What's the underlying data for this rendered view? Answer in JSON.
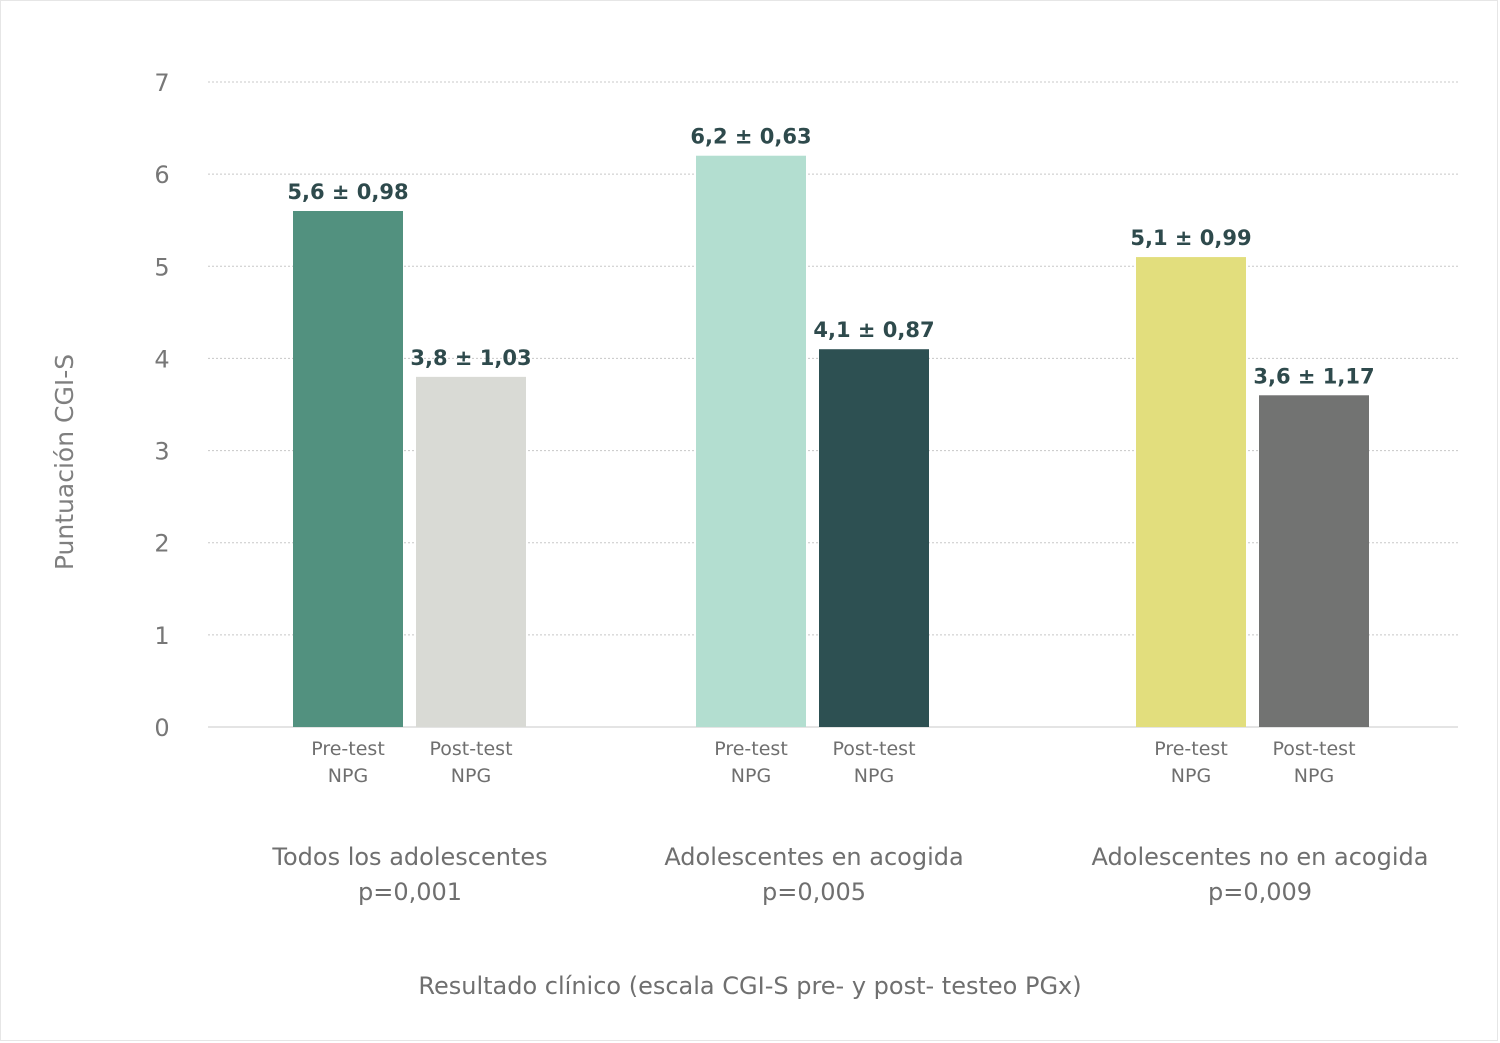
{
  "chart_data": {
    "type": "bar",
    "title": "",
    "ylabel": "Puntuación CGI-S",
    "xlabel": "Resultado clínico (escala CGI-S pre- y post- testeo PGx)",
    "ylim": [
      0,
      7
    ],
    "yticks": [
      "0",
      "1",
      "2",
      "3",
      "4",
      "5",
      "6",
      "7"
    ],
    "grid": true,
    "groups": [
      {
        "name": "Todos los adolescentes",
        "p_value": "p=0,001",
        "bars": [
          {
            "label_line1": "Pre-test",
            "label_line2": "NPG",
            "value": 5.6,
            "value_label": "5,6 ± 0,98",
            "color": "#52917f"
          },
          {
            "label_line1": "Post-test",
            "label_line2": "NPG",
            "value": 3.8,
            "value_label": "3,8 ± 1,03",
            "color": "#d9dad5"
          }
        ]
      },
      {
        "name": "Adolescentes en acogida",
        "p_value": "p=0,005",
        "bars": [
          {
            "label_line1": "Pre-test",
            "label_line2": "NPG",
            "value": 6.2,
            "value_label": "6,2 ± 0,63",
            "color": "#b3ded0"
          },
          {
            "label_line1": "Post-test",
            "label_line2": "NPG",
            "value": 4.1,
            "value_label": "4,1 ± 0,87",
            "color": "#2d5052"
          }
        ]
      },
      {
        "name": "Adolescentes no en acogida",
        "p_value": "p=0,009",
        "bars": [
          {
            "label_line1": "Pre-test",
            "label_line2": "NPG",
            "value": 5.1,
            "value_label": "5,1 ± 0,99",
            "color": "#e2de7d"
          },
          {
            "label_line1": "Post-test",
            "label_line2": "NPG",
            "value": 3.6,
            "value_label": "3,6 ± 1,17",
            "color": "#727372"
          }
        ]
      }
    ]
  }
}
